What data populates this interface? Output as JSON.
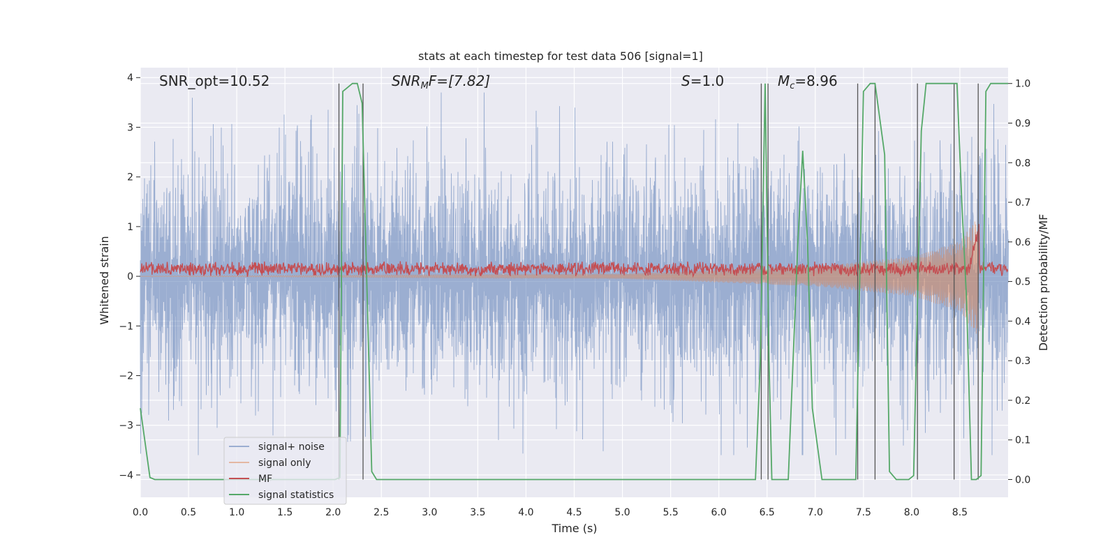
{
  "chart_data": {
    "type": "line",
    "title": "stats at each timestep for test data 506 [signal=1]",
    "xlabel": "Time (s)",
    "ylabel": "Whitened strain",
    "ylabel_right": "Detection probability/MF",
    "xlim": [
      0,
      9.0
    ],
    "ylim": [
      -4.45,
      4.2
    ],
    "ylim_right": [
      -0.045,
      1.04
    ],
    "xticks": [
      0.0,
      0.5,
      1.0,
      1.5,
      2.0,
      2.5,
      3.0,
      3.5,
      4.0,
      4.5,
      5.0,
      5.5,
      6.0,
      6.5,
      7.0,
      7.5,
      8.0,
      8.5
    ],
    "xtick_labels": [
      "0.0",
      "0.5",
      "1.0",
      "1.5",
      "2.0",
      "2.5",
      "3.0",
      "3.5",
      "4.0",
      "4.5",
      "5.0",
      "5.5",
      "6.0",
      "6.5",
      "7.0",
      "7.5",
      "8.0",
      "8.5"
    ],
    "yticks": [
      -4,
      -3,
      -2,
      -1,
      0,
      1,
      2,
      3,
      4
    ],
    "ytick_labels": [
      "−4",
      "−3",
      "−2",
      "−1",
      "0",
      "1",
      "2",
      "3",
      "4"
    ],
    "yticks_right": [
      0.0,
      0.1,
      0.2,
      0.3,
      0.4,
      0.5,
      0.6,
      0.7,
      0.8,
      0.9,
      1.0
    ],
    "ytick_labels_right": [
      "0.0",
      "0.1",
      "0.2",
      "0.3",
      "0.4",
      "0.5",
      "0.6",
      "0.7",
      "0.8",
      "0.9",
      "1.0"
    ],
    "grid": true,
    "legend_position": "lower-left",
    "annotations": {
      "snr_opt": "SNR_opt=10.52",
      "snr_mf_base": "SNR",
      "snr_mf_sub": "M",
      "snr_mf_rest": "F=[7.82]",
      "s_italic": "S",
      "s_rest": "=1.0",
      "mc_base": "M",
      "mc_sub": "c",
      "mc_rest": "=8.96"
    },
    "series": [
      {
        "name": "signal+ noise",
        "color": "#4c72b0",
        "description_range": [
          -3.6,
          3.7
        ]
      },
      {
        "name": "signal only",
        "color": "#dd8452",
        "envelope": [
          [
            0,
            0.0
          ],
          [
            5.0,
            0.05
          ],
          [
            7.0,
            0.2
          ],
          [
            8.0,
            0.4
          ],
          [
            8.5,
            0.7
          ],
          [
            8.68,
            1.2
          ],
          [
            8.7,
            0.0
          ]
        ]
      },
      {
        "name": "MF",
        "color": "#c44e52",
        "center": 0.15,
        "amplitude": 0.2
      },
      {
        "name": "signal statistics",
        "color": "#55a868",
        "axis": "right",
        "x": [
          0.0,
          0.1,
          0.15,
          2.02,
          2.07,
          2.1,
          2.2,
          2.25,
          2.3,
          2.4,
          2.45,
          6.38,
          6.43,
          6.48,
          6.52,
          6.55,
          6.62,
          6.72,
          6.82,
          6.87,
          6.92,
          6.97,
          7.07,
          7.17,
          7.42,
          7.5,
          7.57,
          7.62,
          7.72,
          7.77,
          7.84,
          7.97,
          8.02,
          8.1,
          8.15,
          8.22,
          8.47,
          8.52,
          8.57,
          8.62,
          8.67,
          8.72,
          8.77,
          8.82,
          9.0
        ],
        "y": [
          0.18,
          0.005,
          0.0,
          0.0,
          0.005,
          0.98,
          1.0,
          1.0,
          0.95,
          0.02,
          0.0,
          0.0,
          0.3,
          1.0,
          0.3,
          0.0,
          0.0,
          0.0,
          0.6,
          0.83,
          0.6,
          0.18,
          0.0,
          0.0,
          0.0,
          0.98,
          1.0,
          1.0,
          0.82,
          0.02,
          0.0,
          0.0,
          0.01,
          0.88,
          1.0,
          1.0,
          1.0,
          0.7,
          0.45,
          0.0,
          0.0,
          0.01,
          0.98,
          1.0,
          1.0
        ]
      }
    ],
    "vertical_lines_x": [
      2.06,
      2.31,
      6.44,
      6.51,
      7.44,
      7.62,
      8.06,
      8.44,
      8.69
    ]
  }
}
